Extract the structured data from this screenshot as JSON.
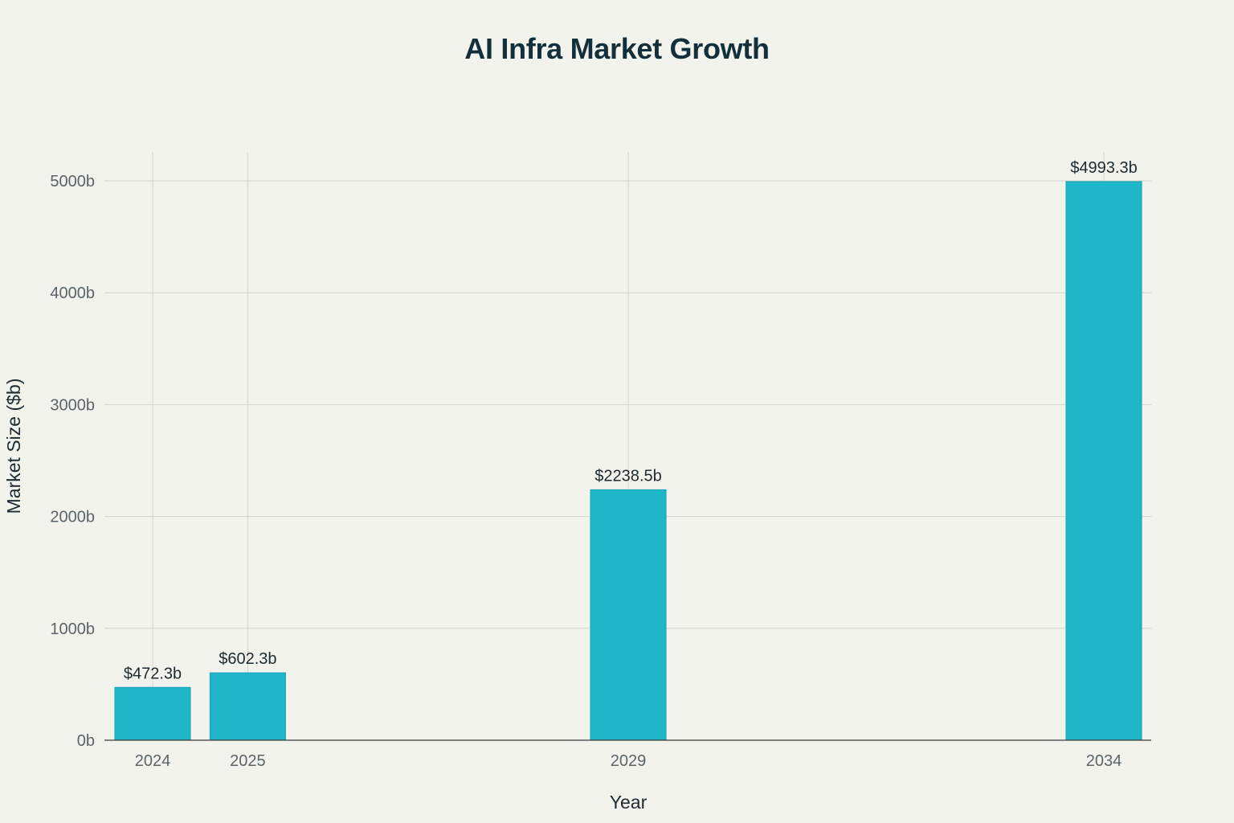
{
  "chart_data": {
    "type": "bar",
    "title": "AI Infra Market Growth",
    "xlabel": "Year",
    "ylabel": "Market Size ($b)",
    "x": [
      2024,
      2025,
      2029,
      2034
    ],
    "categories": [
      "2024",
      "2025",
      "2029",
      "2034"
    ],
    "values": [
      472.3,
      602.3,
      2238.5,
      4993.3
    ],
    "data_labels": [
      "$472.3b",
      "$602.3b",
      "$2238.5b",
      "$4993.3b"
    ],
    "y_ticks": [
      0,
      1000,
      2000,
      3000,
      4000,
      5000
    ],
    "y_tick_labels": [
      "0b",
      "1000b",
      "2000b",
      "3000b",
      "4000b",
      "5000b"
    ],
    "x_ticks": [
      2024,
      2025,
      2029,
      2034
    ],
    "x_tick_labels": [
      "2024",
      "2025",
      "2029",
      "2034"
    ],
    "ylim": [
      0,
      5250
    ],
    "xlim": [
      2023.5,
      2034.5
    ],
    "grid": true,
    "colors": {
      "bar": "#1fb6c9",
      "bar_edge": "#17a2b4",
      "grid": "#d3d3cf",
      "axis": "#3a3a3a",
      "background": "#f3f3ee"
    }
  }
}
